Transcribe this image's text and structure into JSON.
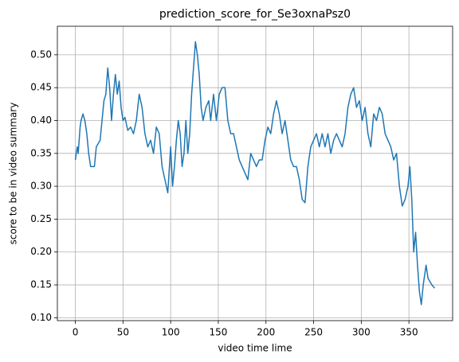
{
  "chart_data": {
    "type": "line",
    "title": "prediction_score_for_Se3oxnaPsz0",
    "xlabel": "video time lime",
    "ylabel": "score to be in video summary",
    "x": [
      0,
      2,
      3,
      5,
      6,
      8,
      10,
      12,
      14,
      16,
      18,
      20,
      22,
      24,
      26,
      28,
      30,
      32,
      34,
      36,
      38,
      40,
      42,
      44,
      46,
      48,
      50,
      52,
      55,
      58,
      61,
      64,
      67,
      70,
      73,
      76,
      79,
      82,
      85,
      88,
      91,
      94,
      97,
      100,
      102,
      104,
      106,
      108,
      110,
      112,
      114,
      116,
      118,
      120,
      122,
      124,
      126,
      128,
      130,
      132,
      134,
      137,
      140,
      142,
      145,
      148,
      151,
      154,
      157,
      160,
      163,
      166,
      169,
      172,
      175,
      178,
      181,
      184,
      187,
      190,
      193,
      196,
      199,
      202,
      205,
      208,
      211,
      214,
      217,
      220,
      223,
      226,
      229,
      232,
      235,
      238,
      241,
      244,
      247,
      250,
      253,
      256,
      259,
      262,
      265,
      268,
      271,
      274,
      277,
      280,
      283,
      286,
      289,
      292,
      295,
      298,
      301,
      304,
      307,
      310,
      313,
      316,
      319,
      322,
      325,
      328,
      331,
      334,
      337,
      340,
      343,
      346,
      349,
      351,
      353,
      355,
      357,
      359,
      361,
      363,
      365,
      368,
      370,
      374,
      377
    ],
    "series": [
      {
        "name": "prediction",
        "color": "#1f77b4",
        "values": [
          0.34,
          0.36,
          0.35,
          0.39,
          0.4,
          0.41,
          0.4,
          0.38,
          0.35,
          0.33,
          0.33,
          0.33,
          0.36,
          0.365,
          0.37,
          0.4,
          0.43,
          0.44,
          0.48,
          0.45,
          0.4,
          0.44,
          0.47,
          0.44,
          0.46,
          0.42,
          0.4,
          0.405,
          0.385,
          0.39,
          0.38,
          0.4,
          0.44,
          0.42,
          0.38,
          0.36,
          0.37,
          0.35,
          0.39,
          0.38,
          0.33,
          0.31,
          0.29,
          0.36,
          0.3,
          0.33,
          0.37,
          0.4,
          0.38,
          0.33,
          0.35,
          0.4,
          0.35,
          0.38,
          0.44,
          0.48,
          0.52,
          0.5,
          0.47,
          0.42,
          0.4,
          0.42,
          0.43,
          0.4,
          0.44,
          0.4,
          0.44,
          0.45,
          0.45,
          0.4,
          0.38,
          0.38,
          0.36,
          0.34,
          0.33,
          0.32,
          0.31,
          0.35,
          0.34,
          0.33,
          0.34,
          0.34,
          0.37,
          0.39,
          0.38,
          0.41,
          0.43,
          0.41,
          0.38,
          0.4,
          0.37,
          0.34,
          0.33,
          0.33,
          0.31,
          0.28,
          0.275,
          0.33,
          0.36,
          0.37,
          0.38,
          0.36,
          0.38,
          0.36,
          0.38,
          0.35,
          0.37,
          0.38,
          0.37,
          0.36,
          0.38,
          0.42,
          0.44,
          0.45,
          0.42,
          0.43,
          0.4,
          0.42,
          0.38,
          0.36,
          0.41,
          0.4,
          0.42,
          0.41,
          0.38,
          0.37,
          0.36,
          0.34,
          0.35,
          0.3,
          0.27,
          0.28,
          0.3,
          0.33,
          0.28,
          0.2,
          0.23,
          0.18,
          0.14,
          0.12,
          0.15,
          0.18,
          0.16,
          0.15,
          0.145
        ]
      }
    ],
    "xlim": [
      -18.85,
      395.85
    ],
    "ylim": [
      0.0956,
      0.5434
    ],
    "xticks": [
      0,
      50,
      100,
      150,
      200,
      250,
      300,
      350
    ],
    "yticks": [
      {
        "value": 0.1,
        "label": "0.10"
      },
      0.15,
      {
        "value": 0.2,
        "label": "0.20"
      },
      0.25,
      {
        "value": 0.3,
        "label": "0.30"
      },
      0.35,
      {
        "value": 0.4,
        "label": "0.40"
      },
      0.45,
      {
        "value": 0.5,
        "label": "0.50"
      }
    ],
    "grid": true
  }
}
